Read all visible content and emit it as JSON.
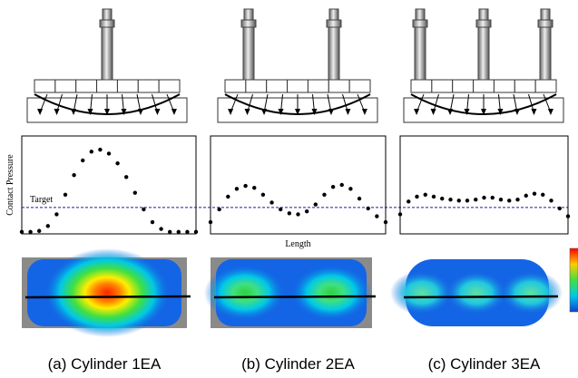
{
  "chart_data": [
    {
      "type": "scatter",
      "title": "(a) Cylinder 1EA",
      "ylabel": "Contact Pressure",
      "annotation": "Target",
      "target": 27,
      "color": "#000000",
      "x": [
        0,
        5,
        10,
        15,
        20,
        25,
        30,
        35,
        40,
        45,
        50,
        55,
        60,
        65,
        70,
        75,
        80,
        85,
        90,
        95,
        100
      ],
      "values": [
        2,
        2,
        3,
        8,
        20,
        40,
        60,
        75,
        84,
        86,
        82,
        72,
        58,
        42,
        25,
        12,
        5,
        2,
        2,
        2,
        2
      ],
      "xlim": [
        0,
        100
      ],
      "ylim": [
        0,
        100
      ]
    },
    {
      "type": "scatter",
      "title": "(b) Cylinder 2EA",
      "xlabel": "Length",
      "color": "#000000",
      "x": [
        0,
        5,
        10,
        15,
        20,
        25,
        30,
        35,
        40,
        45,
        50,
        55,
        60,
        65,
        70,
        75,
        80,
        85,
        90,
        95,
        100
      ],
      "values": [
        12,
        25,
        38,
        46,
        49,
        47,
        40,
        32,
        25,
        21,
        20,
        23,
        30,
        40,
        48,
        50,
        46,
        36,
        26,
        18,
        12
      ],
      "xlim": [
        0,
        100
      ],
      "ylim": [
        0,
        100
      ]
    },
    {
      "type": "scatter",
      "title": "(c) Cylinder 3EA",
      "color": "#000000",
      "x": [
        0,
        5,
        10,
        15,
        20,
        25,
        30,
        35,
        40,
        45,
        50,
        55,
        60,
        65,
        70,
        75,
        80,
        85,
        90,
        95,
        100
      ],
      "values": [
        20,
        33,
        38,
        40,
        38,
        36,
        35,
        34,
        34,
        35,
        37,
        37,
        35,
        34,
        35,
        39,
        41,
        40,
        34,
        26,
        18
      ],
      "xlim": [
        0,
        100
      ],
      "ylim": [
        0,
        100
      ]
    }
  ]
}
